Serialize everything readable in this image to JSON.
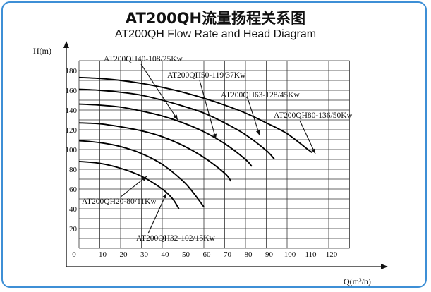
{
  "title_cn": "AT200QH流量扬程关系图",
  "title_en": "AT200QH Flow Rate and Head Diagram",
  "chart_data": {
    "type": "line",
    "title": "AT200QH流量扬程关系图",
    "subtitle": "AT200QH Flow Rate and Head Diagram",
    "xlabel": "Q(m³/h)",
    "ylabel": "H(m)",
    "xlim": [
      0,
      130
    ],
    "ylim": [
      0,
      190
    ],
    "x_ticks": [
      0,
      10,
      20,
      30,
      40,
      50,
      60,
      70,
      80,
      90,
      100,
      110,
      120
    ],
    "y_ticks": [
      20,
      40,
      60,
      80,
      100,
      120,
      140,
      160,
      180
    ],
    "origin_label": "0",
    "grid": true,
    "series": [
      {
        "name": "AT200QH20-80/11Kw",
        "x": [
          0,
          10,
          20,
          30,
          40,
          45,
          48
        ],
        "y": [
          88,
          86,
          81,
          73,
          60,
          50,
          40
        ]
      },
      {
        "name": "AT200QH32-102/15Kw",
        "x": [
          0,
          10,
          20,
          30,
          40,
          50,
          55,
          60
        ],
        "y": [
          109,
          107,
          103,
          96,
          85,
          68,
          56,
          42
        ]
      },
      {
        "name": "AT200QH40-108/25Kw",
        "x": [
          0,
          10,
          20,
          30,
          40,
          50,
          60,
          70,
          73
        ],
        "y": [
          127,
          126,
          123,
          119,
          113,
          104,
          92,
          76,
          68
        ]
      },
      {
        "name": "AT200QH50-119/37Kw",
        "x": [
          0,
          10,
          20,
          30,
          40,
          50,
          60,
          70,
          80,
          83
        ],
        "y": [
          146,
          145,
          143,
          139,
          134,
          127,
          118,
          106,
          90,
          83
        ]
      },
      {
        "name": "AT200QH63-128/45Kw",
        "x": [
          0,
          10,
          20,
          30,
          40,
          50,
          60,
          70,
          80,
          90,
          94
        ],
        "y": [
          161,
          160,
          158,
          155,
          150,
          144,
          137,
          127,
          115,
          99,
          90
        ]
      },
      {
        "name": "AT200QH80-136/50Kw",
        "x": [
          0,
          10,
          20,
          30,
          40,
          50,
          60,
          70,
          80,
          90,
          100,
          110,
          112
        ],
        "y": [
          173,
          172,
          170,
          167,
          163,
          158,
          152,
          145,
          137,
          127,
          116,
          100,
          97
        ]
      }
    ],
    "annotations": [
      {
        "text": "AT200QH40-108/25Kw"
      },
      {
        "text": "AT200QH50-119/37Kw"
      },
      {
        "text": "AT200QH63-128/45Kw"
      },
      {
        "text": "AT200QH80-136/50Kw"
      },
      {
        "text": "AT200QH20-80/11Kw"
      },
      {
        "text": "AT200QH32-102/15Kw"
      }
    ]
  }
}
